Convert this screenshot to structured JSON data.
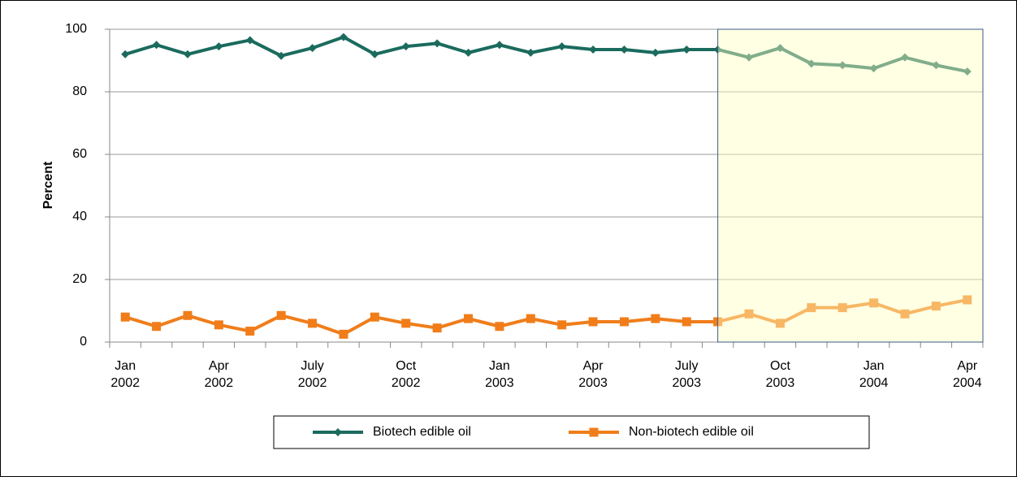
{
  "chart_data": {
    "type": "line",
    "categories": [
      "Jan 2002",
      null,
      null,
      "Apr 2002",
      null,
      null,
      "July 2002",
      null,
      null,
      "Oct 2002",
      null,
      null,
      "Jan 2003",
      null,
      null,
      "Apr 2003",
      null,
      null,
      "July 2003",
      null,
      null,
      "Oct 2003",
      null,
      null,
      "Jan 2004",
      null,
      null,
      "Apr 2004"
    ],
    "series": [
      {
        "name": "Biotech edible oil",
        "color": "#1a6b5e",
        "marker": "diamond",
        "values": [
          92,
          95,
          92,
          94.5,
          96.5,
          91.5,
          94,
          97.5,
          92,
          94.5,
          95.5,
          92.5,
          95,
          92.5,
          94.5,
          93.5,
          93.5,
          92.5,
          93.5,
          93.5,
          91,
          94,
          89,
          88.5,
          87.5,
          91,
          88.5,
          86.5
        ]
      },
      {
        "name": "Non-biotech edible oil",
        "color": "#f07d1a",
        "marker": "square",
        "values": [
          8,
          5,
          8.5,
          5.5,
          3.5,
          8.5,
          6,
          2.5,
          8,
          6,
          4.5,
          7.5,
          5,
          7.5,
          5.5,
          6.5,
          6.5,
          7.5,
          6.5,
          6.5,
          9,
          6,
          11,
          11,
          12.5,
          9,
          11.5,
          13.5
        ]
      }
    ],
    "y_label": "Percent",
    "ylim": [
      0,
      100
    ],
    "yticks": [
      0,
      20,
      40,
      60,
      80,
      100
    ],
    "grid": true,
    "shaded_from_index": 19,
    "shade_color": "#ffffc0",
    "legend": "bottom"
  }
}
